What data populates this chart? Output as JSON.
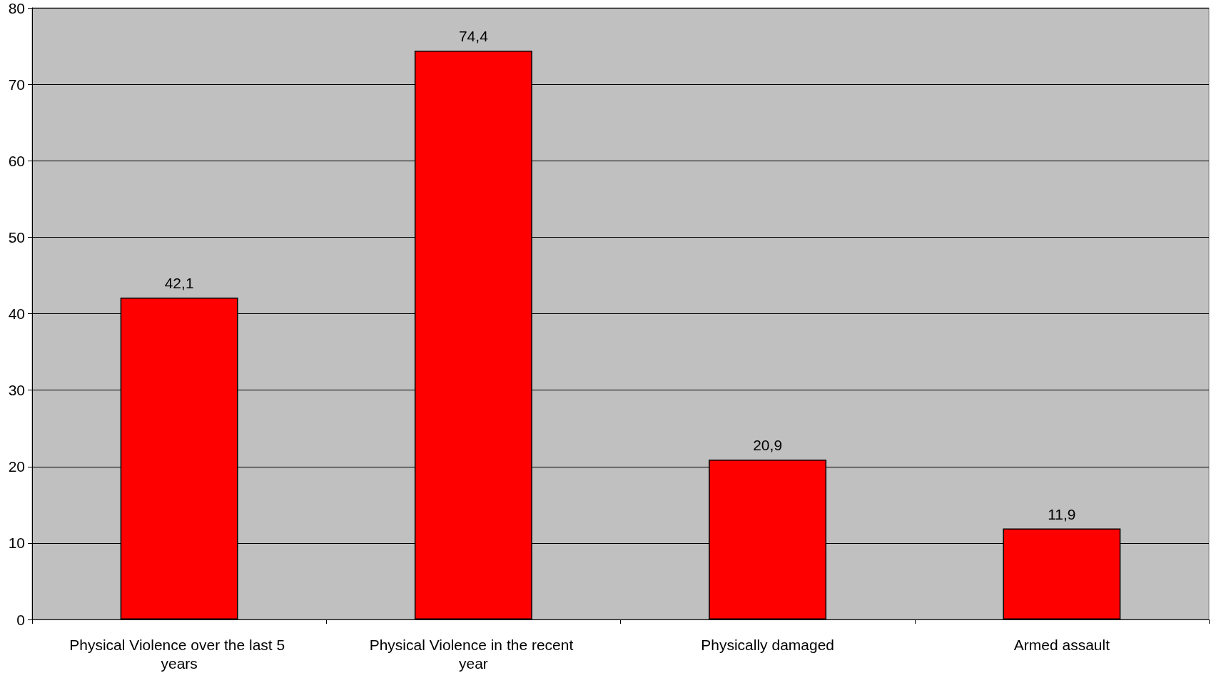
{
  "chart_data": {
    "type": "bar",
    "categories": [
      "Physical Violence over the last 5 years",
      "Physical Violence in the recent year",
      "Physically damaged",
      "Armed assault"
    ],
    "values": [
      42.1,
      74.4,
      20.9,
      11.9
    ],
    "value_labels": [
      "42,1",
      "74,4",
      "20,9",
      "11,9"
    ],
    "color": "#ff0000",
    "ylim": [
      0,
      80
    ],
    "yticks": [
      0,
      10,
      20,
      30,
      40,
      50,
      60,
      70,
      80
    ],
    "grid": "y"
  }
}
